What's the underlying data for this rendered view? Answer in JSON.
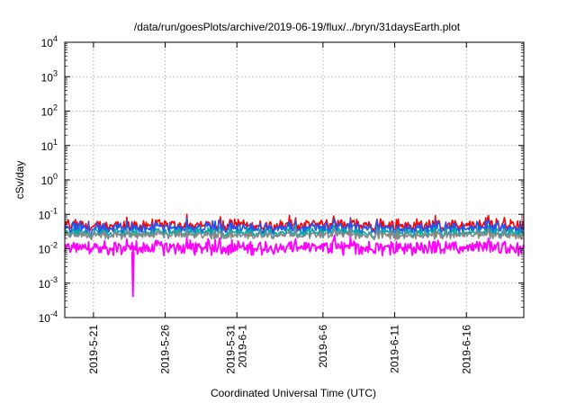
{
  "chart_data": {
    "type": "line",
    "title": "/data/run/goesPlots/archive/2019-06-19/flux/../bryn/31daysEarth.plot",
    "xlabel": "Coordinated Universal Time (UTC)",
    "ylabel": "cSv/day",
    "yscale": "log",
    "ylim": [
      0.0001,
      10000
    ],
    "xlim": [
      "2019-05-19",
      "2019-06-20"
    ],
    "grid": true,
    "x_ticks": [
      {
        "date": "2019-05-21",
        "lines": [
          "2019-5-21"
        ]
      },
      {
        "date": "2019-05-26",
        "lines": [
          "2019-5-26"
        ]
      },
      {
        "date": "2019-05-31",
        "lines": [
          "2019-5-31",
          "2019-6-1"
        ]
      },
      {
        "date": "2019-06-06",
        "lines": [
          "2019-6-6"
        ]
      },
      {
        "date": "2019-06-11",
        "lines": [
          "2019-6-11"
        ]
      },
      {
        "date": "2019-06-16",
        "lines": [
          "2019-6-16"
        ]
      }
    ],
    "y_ticks": [
      {
        "value": 0.0001,
        "base": "10",
        "exp": "-4"
      },
      {
        "value": 0.001,
        "base": "10",
        "exp": "-3"
      },
      {
        "value": 0.01,
        "base": "10",
        "exp": "-2"
      },
      {
        "value": 0.1,
        "base": "10",
        "exp": "-1"
      },
      {
        "value": 1,
        "base": "10",
        "exp": "0"
      },
      {
        "value": 10,
        "base": "10",
        "exp": "1"
      },
      {
        "value": 100,
        "base": "10",
        "exp": "2"
      },
      {
        "value": 1000,
        "base": "10",
        "exp": "3"
      },
      {
        "value": 10000,
        "base": "10",
        "exp": "4"
      }
    ],
    "series": [
      {
        "color": "#ff0000",
        "low": 0.03,
        "high": 0.1
      },
      {
        "color": "#2255ee",
        "low": 0.025,
        "high": 0.08
      },
      {
        "color": "#00aaaa",
        "low": 0.02,
        "high": 0.05
      },
      {
        "color": "#888888",
        "low": 0.018,
        "high": 0.04
      },
      {
        "color": "#ff00ff",
        "low": 0.006,
        "high": 0.025
      }
    ],
    "annotations": [
      {
        "series_color": "#ff00ff",
        "date": "2019-05-23T18:00",
        "value": 0.0004,
        "note": "single low spike"
      }
    ]
  }
}
